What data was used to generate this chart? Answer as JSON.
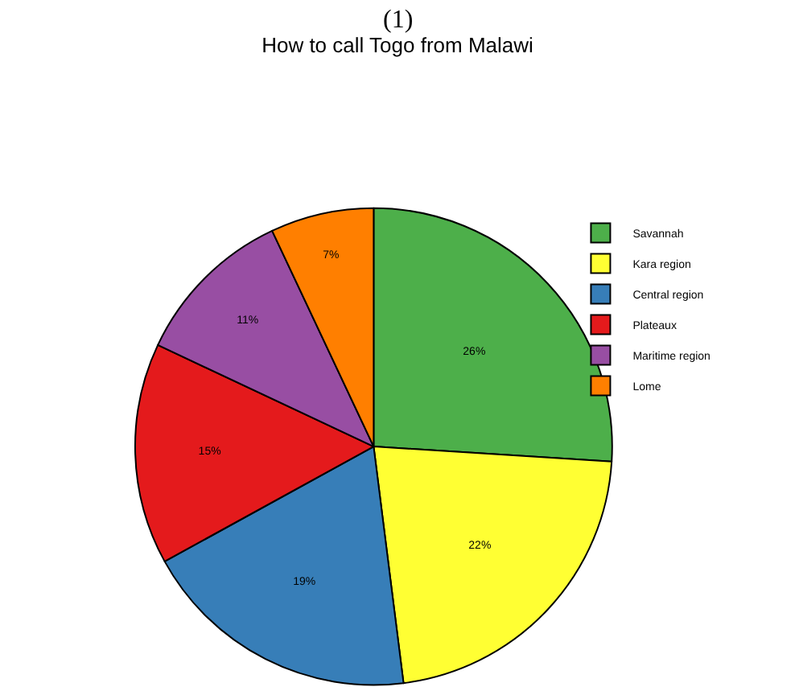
{
  "chart_data": {
    "type": "pie",
    "title": "How to call Togo from Malawi",
    "annotations": [
      "(1)"
    ],
    "categories": [
      "Savannah",
      "Kara region",
      "Central region",
      "Plateaux",
      "Maritime region",
      "Lome"
    ],
    "values": [
      26,
      22,
      19,
      15,
      11,
      7
    ],
    "colors": [
      "#4daf4a",
      "#ffff33",
      "#377eb8",
      "#e41a1c",
      "#984ea3",
      "#ff7f00"
    ],
    "value_labels": [
      "26%",
      "22%",
      "19%",
      "15%",
      "11%",
      "7%"
    ],
    "legend": "top right"
  }
}
